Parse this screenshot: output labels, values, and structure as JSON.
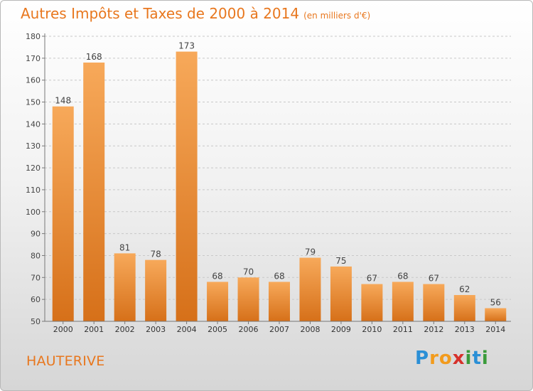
{
  "header": {
    "title": "Autres Impôts et Taxes de 2000 à 2014",
    "unit": "(en milliers d'€)"
  },
  "location": "HAUTERIVE",
  "brand": {
    "letters": [
      "P",
      "r",
      "o",
      "x",
      "i",
      "t",
      "i"
    ],
    "colors": [
      "#2a8fd6",
      "#f29b1d",
      "#f29b1d",
      "#d6312b",
      "#3a9b3a",
      "#2a8fd6",
      "#3a9b3a"
    ]
  },
  "colors": {
    "accent": "#e8771e",
    "bar_light": "#f7a95a",
    "bar_dark": "#d67019"
  },
  "chart_data": {
    "type": "bar",
    "title": "Autres Impôts et Taxes de 2000 à 2014",
    "subtitle": "(en milliers d'€)",
    "categories": [
      "2000",
      "2001",
      "2002",
      "2003",
      "2004",
      "2005",
      "2006",
      "2007",
      "2008",
      "2009",
      "2010",
      "2011",
      "2012",
      "2013",
      "2014"
    ],
    "values": [
      148,
      168,
      81,
      78,
      173,
      68,
      70,
      68,
      79,
      75,
      67,
      68,
      67,
      62,
      56
    ],
    "ylim": [
      50,
      180
    ],
    "yticks": [
      50,
      60,
      70,
      80,
      90,
      100,
      110,
      120,
      130,
      140,
      150,
      160,
      170,
      180
    ],
    "grid": true,
    "data_labels": true
  }
}
